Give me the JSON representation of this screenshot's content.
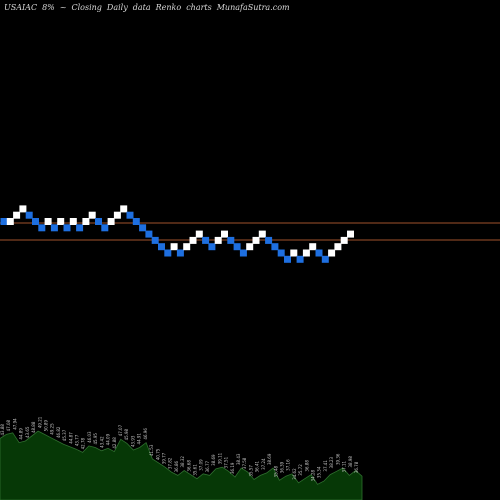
{
  "header": {
    "ticker": "USAIAC",
    "change": "8%",
    "arrow": "~",
    "mode": "Closing",
    "interval": "Daily",
    "label": "data",
    "chart_name": "Renko",
    "suffix": "charts",
    "site": "MunafaSutra.com"
  },
  "colors": {
    "up": "#ffffff",
    "down": "#1e6fe0",
    "line": "#a0522d",
    "volume_fill": "#063806",
    "volume_line": "#2f6f2f",
    "label": "#c8c8c8",
    "background": "#000000"
  },
  "chart_data": {
    "type": "renko",
    "bricks": [
      {
        "i": 0,
        "dir": "down",
        "level": 0
      },
      {
        "i": 1,
        "dir": "up",
        "level": 0
      },
      {
        "i": 2,
        "dir": "up",
        "level": 1
      },
      {
        "i": 3,
        "dir": "up",
        "level": 2
      },
      {
        "i": 4,
        "dir": "down",
        "level": 1
      },
      {
        "i": 5,
        "dir": "down",
        "level": 0
      },
      {
        "i": 6,
        "dir": "down",
        "level": -1
      },
      {
        "i": 7,
        "dir": "up",
        "level": 0
      },
      {
        "i": 8,
        "dir": "down",
        "level": -1
      },
      {
        "i": 9,
        "dir": "up",
        "level": 0
      },
      {
        "i": 10,
        "dir": "down",
        "level": -1
      },
      {
        "i": 11,
        "dir": "up",
        "level": 0
      },
      {
        "i": 12,
        "dir": "down",
        "level": -1
      },
      {
        "i": 13,
        "dir": "up",
        "level": 0
      },
      {
        "i": 14,
        "dir": "up",
        "level": 1
      },
      {
        "i": 15,
        "dir": "down",
        "level": 0
      },
      {
        "i": 16,
        "dir": "down",
        "level": -1
      },
      {
        "i": 17,
        "dir": "up",
        "level": 0
      },
      {
        "i": 18,
        "dir": "up",
        "level": 1
      },
      {
        "i": 19,
        "dir": "up",
        "level": 2
      },
      {
        "i": 20,
        "dir": "down",
        "level": 1
      },
      {
        "i": 21,
        "dir": "down",
        "level": 0
      },
      {
        "i": 22,
        "dir": "down",
        "level": -1
      },
      {
        "i": 23,
        "dir": "down",
        "level": -2
      },
      {
        "i": 24,
        "dir": "down",
        "level": -3
      },
      {
        "i": 25,
        "dir": "down",
        "level": -4
      },
      {
        "i": 26,
        "dir": "down",
        "level": -5
      },
      {
        "i": 27,
        "dir": "up",
        "level": -4
      },
      {
        "i": 28,
        "dir": "down",
        "level": -5
      },
      {
        "i": 29,
        "dir": "up",
        "level": -4
      },
      {
        "i": 30,
        "dir": "up",
        "level": -3
      },
      {
        "i": 31,
        "dir": "up",
        "level": -2
      },
      {
        "i": 32,
        "dir": "down",
        "level": -3
      },
      {
        "i": 33,
        "dir": "down",
        "level": -4
      },
      {
        "i": 34,
        "dir": "up",
        "level": -3
      },
      {
        "i": 35,
        "dir": "up",
        "level": -2
      },
      {
        "i": 36,
        "dir": "down",
        "level": -3
      },
      {
        "i": 37,
        "dir": "down",
        "level": -4
      },
      {
        "i": 38,
        "dir": "down",
        "level": -5
      },
      {
        "i": 39,
        "dir": "up",
        "level": -4
      },
      {
        "i": 40,
        "dir": "up",
        "level": -3
      },
      {
        "i": 41,
        "dir": "up",
        "level": -2
      },
      {
        "i": 42,
        "dir": "down",
        "level": -3
      },
      {
        "i": 43,
        "dir": "down",
        "level": -4
      },
      {
        "i": 44,
        "dir": "down",
        "level": -5
      },
      {
        "i": 45,
        "dir": "down",
        "level": -6
      },
      {
        "i": 46,
        "dir": "up",
        "level": -5
      },
      {
        "i": 47,
        "dir": "down",
        "level": -6
      },
      {
        "i": 48,
        "dir": "up",
        "level": -5
      },
      {
        "i": 49,
        "dir": "up",
        "level": -4
      },
      {
        "i": 50,
        "dir": "down",
        "level": -5
      },
      {
        "i": 51,
        "dir": "down",
        "level": -6
      },
      {
        "i": 52,
        "dir": "up",
        "level": -5
      },
      {
        "i": 53,
        "dir": "up",
        "level": -4
      },
      {
        "i": 54,
        "dir": "up",
        "level": -3
      },
      {
        "i": 55,
        "dir": "up",
        "level": -2
      }
    ],
    "reference_levels": [
      -0.8,
      -3.5
    ],
    "volume_labels": [
      "43.88",
      "47.08",
      "47.94",
      "44.89",
      "43.65",
      "48.88",
      "49.21",
      "50.89",
      "49.25",
      "46.82",
      "45.37",
      "44.87",
      "43.77",
      "42.78",
      "46.03",
      "45.95",
      "43.42",
      "44.09",
      "42.88",
      "47.07",
      "45.98",
      "43.93",
      "44.91",
      "46.96",
      "41.53",
      "40.75",
      "39.77",
      "37.82",
      "36.86",
      "38.32",
      "36.68",
      "35.61",
      "37.09",
      "36.77",
      "38.69",
      "39.11",
      "37.51",
      "36.19",
      "38.43",
      "37.58",
      "35.57",
      "36.41",
      "37.24",
      "38.69",
      "35.48",
      "36.39",
      "37.16",
      "34.62",
      "35.72",
      "36.88",
      "34.28",
      "35.34",
      "37.41",
      "38.23",
      "39.36",
      "37.11",
      "38.98",
      "36.78"
    ],
    "volume": [
      7.5,
      8.0,
      8.2,
      7.0,
      7.2,
      7.8,
      8.4,
      8.0,
      7.6,
      7.2,
      6.8,
      6.5,
      6.2,
      5.8,
      6.6,
      6.4,
      6.0,
      6.3,
      5.9,
      7.4,
      6.9,
      6.1,
      6.4,
      7.0,
      5.0,
      4.5,
      4.0,
      3.4,
      3.0,
      3.6,
      3.1,
      2.6,
      3.2,
      3.0,
      3.8,
      4.0,
      3.5,
      2.8,
      3.9,
      3.4,
      2.5,
      3.0,
      3.3,
      3.9,
      2.4,
      2.9,
      3.2,
      2.1,
      2.6,
      3.1,
      1.9,
      2.3,
      3.1,
      3.5,
      3.9,
      3.0,
      3.6,
      2.9
    ]
  }
}
